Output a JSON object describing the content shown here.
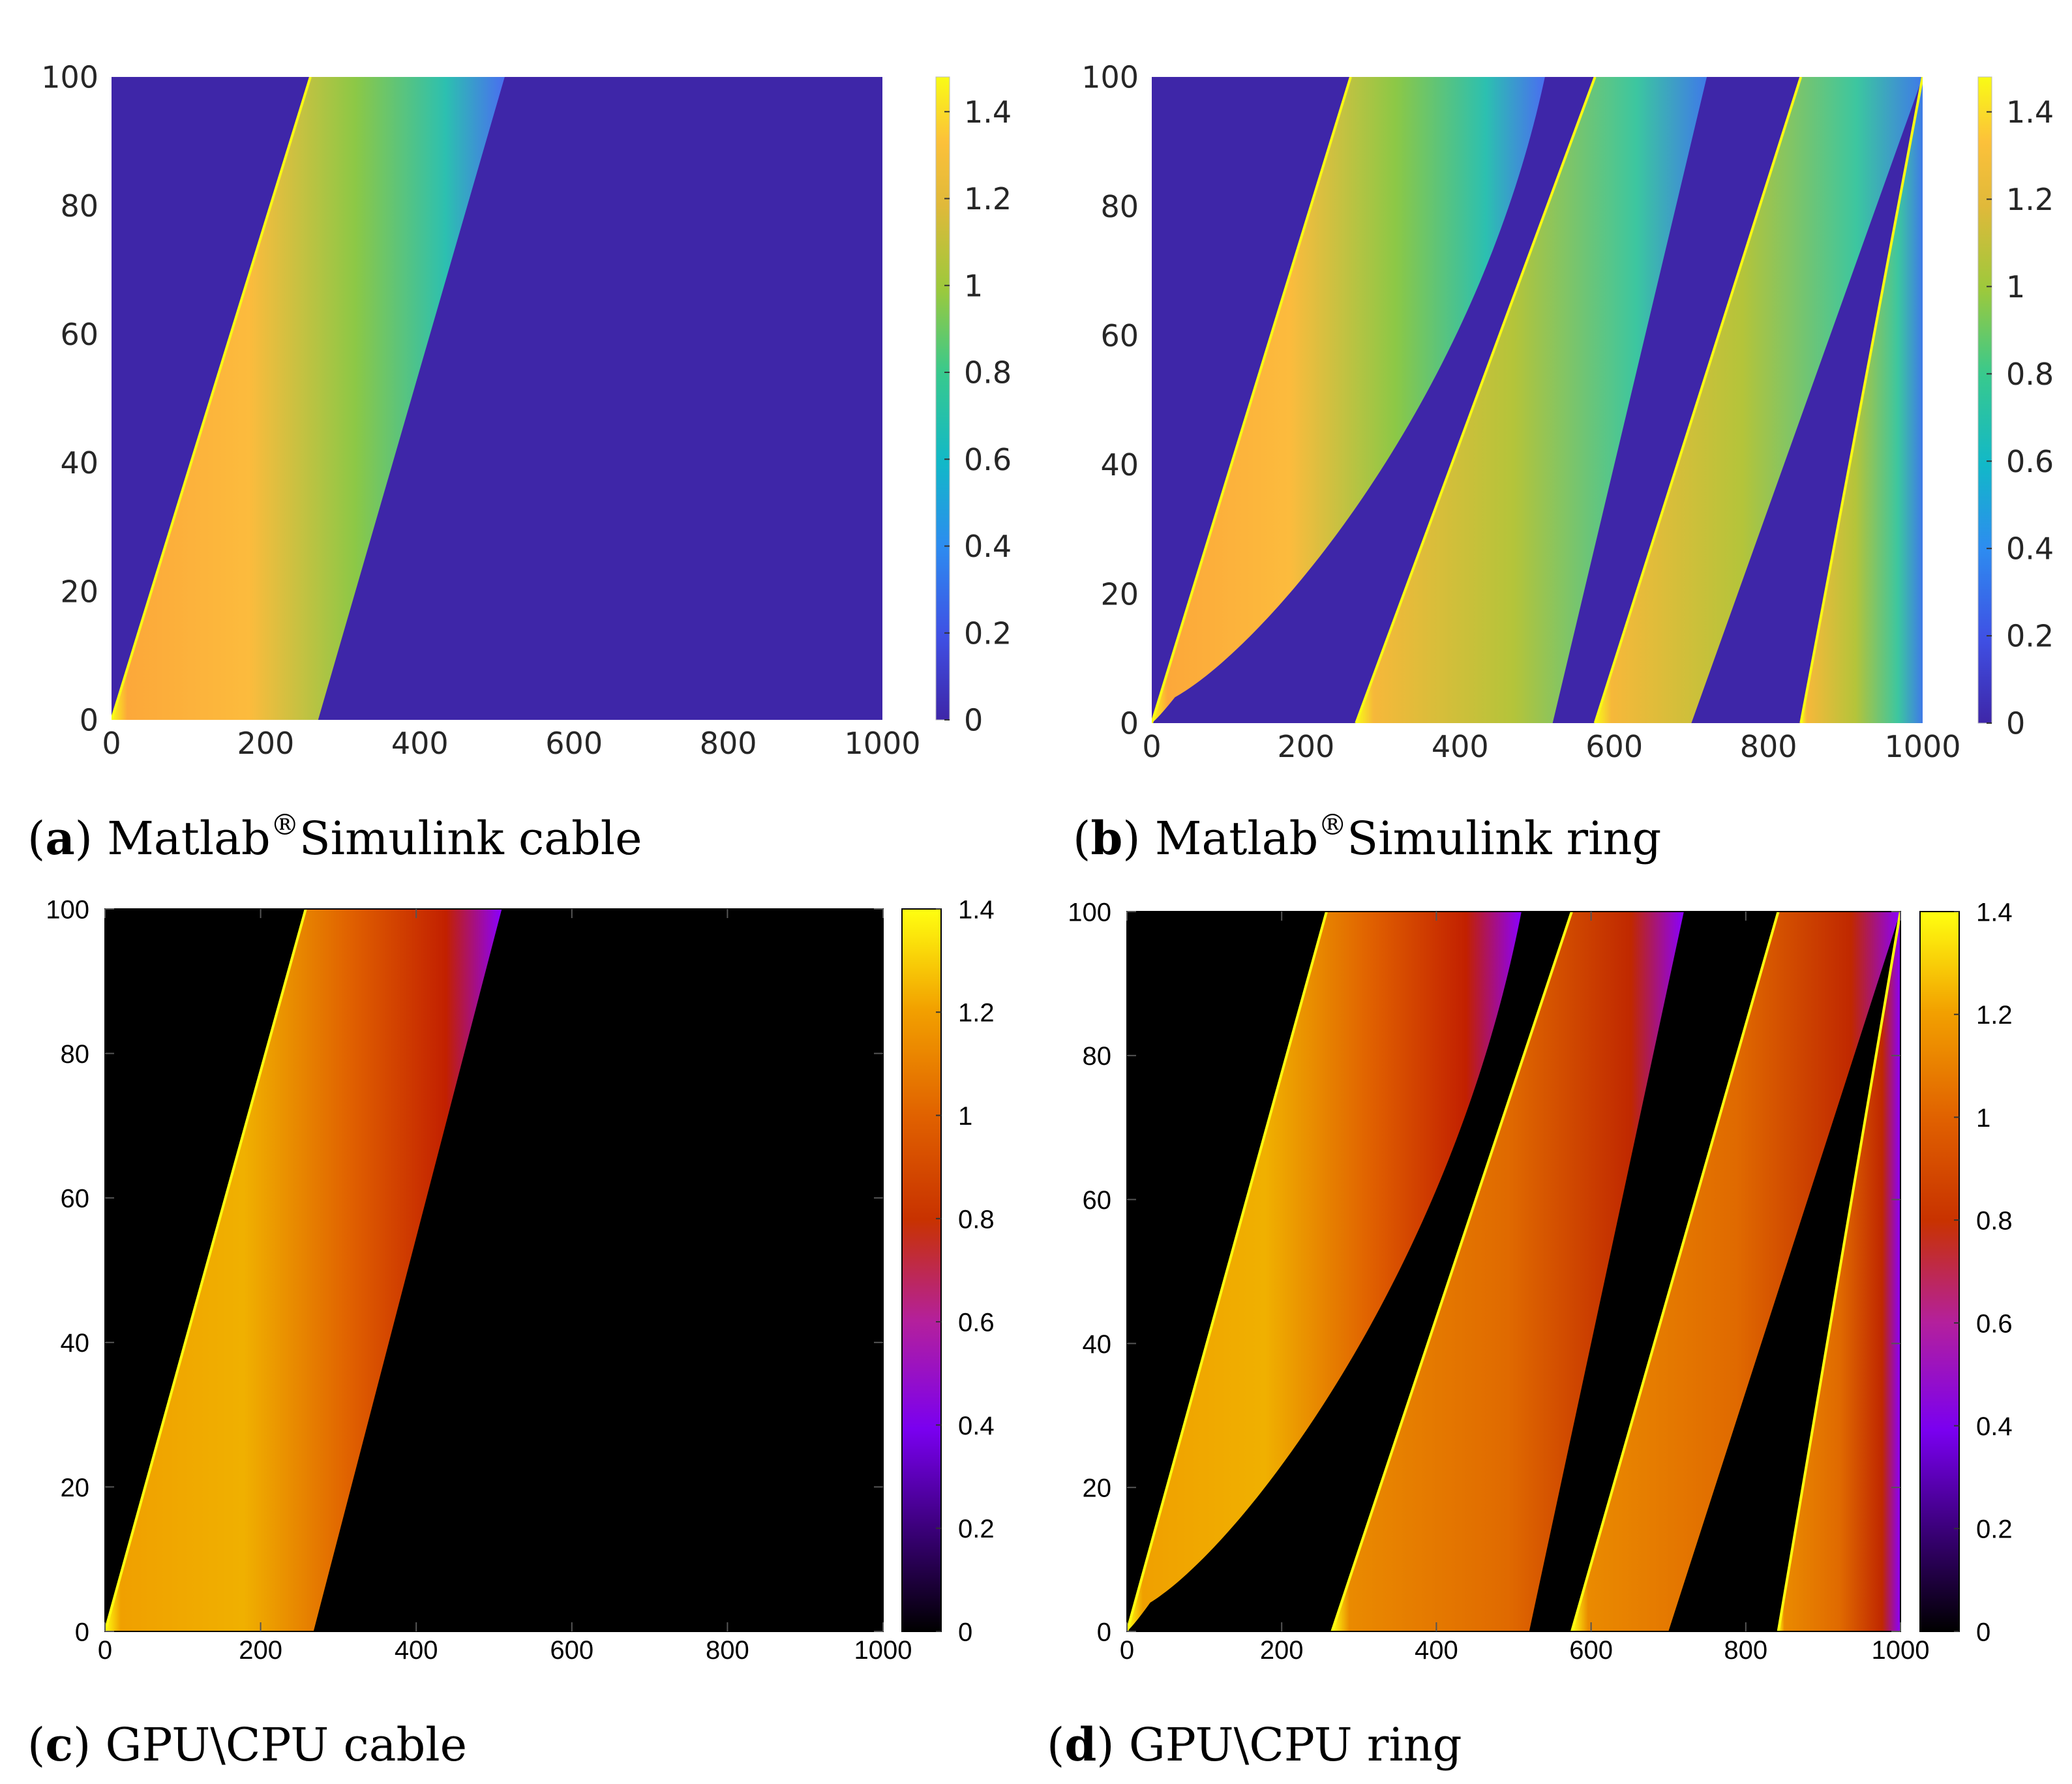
{
  "figure": {
    "panels": [
      {
        "id": "a",
        "label": "a",
        "caption": "Matlab®Simulink cable",
        "caption_pre": "Matlab",
        "caption_sup": "®",
        "caption_post": "Simulink cable",
        "colormap": "parula"
      },
      {
        "id": "b",
        "label": "b",
        "caption": "Matlab®Simulink ring",
        "caption_pre": "Matlab",
        "caption_sup": "®",
        "caption_post": "Simulink ring",
        "colormap": "parula"
      },
      {
        "id": "c",
        "label": "c",
        "caption": "GPU\\CPU cable",
        "caption_pre": "GPU\\CPU cable",
        "caption_sup": "",
        "caption_post": "",
        "colormap": "gnuplot"
      },
      {
        "id": "d",
        "label": "d",
        "caption": "GPU\\CPU ring",
        "caption_pre": "GPU\\CPU ring",
        "caption_sup": "",
        "caption_post": "",
        "colormap": "gnuplot"
      }
    ]
  },
  "chart_data": [
    {
      "type": "heatmap",
      "panel": "a",
      "title": "(a) Matlab®Simulink cable",
      "xlabel": "",
      "ylabel": "",
      "xlim": [
        0,
        1000
      ],
      "ylim": [
        0,
        100
      ],
      "xticks": [
        0,
        200,
        400,
        600,
        800,
        1000
      ],
      "yticks": [
        0,
        20,
        40,
        60,
        80,
        100
      ],
      "colorbar": {
        "range": [
          0,
          1.48
        ],
        "ticks": [
          0,
          0.2,
          0.4,
          0.6,
          0.8,
          1,
          1.2,
          1.4
        ],
        "colormap": "parula"
      },
      "background_value": 0.05,
      "bands": [
        {
          "name": "cable pulse",
          "front_x_at_y0": 0,
          "front_x_at_y100": 258,
          "back_x_at_y0": 268,
          "back_x_at_y100": 510,
          "peak_value": 1.3
        }
      ]
    },
    {
      "type": "heatmap",
      "panel": "b",
      "title": "(b) Matlab®Simulink ring",
      "xlabel": "",
      "ylabel": "",
      "xlim": [
        0,
        1000
      ],
      "ylim": [
        0,
        100
      ],
      "xticks": [
        0,
        200,
        400,
        600,
        800,
        1000
      ],
      "yticks": [
        0,
        20,
        40,
        60,
        80,
        100
      ],
      "colorbar": {
        "range": [
          0,
          1.48
        ],
        "ticks": [
          0,
          0.2,
          0.4,
          0.6,
          0.8,
          1,
          1.2,
          1.4
        ],
        "colormap": "parula"
      },
      "background_value": 0.05,
      "bands": [
        {
          "name": "first pulse",
          "front_x_at_y0": 0,
          "front_x_at_y100": 258,
          "back_x_at_y0": 30,
          "back_x_at_y100": 510,
          "peak_value": 1.3
        },
        {
          "name": "second pulse",
          "front_x_at_y0": 265,
          "front_x_at_y100": 575,
          "back_x_at_y0": 520,
          "back_x_at_y100": 720,
          "peak_value": 1.2
        },
        {
          "name": "third pulse",
          "front_x_at_y0": 575,
          "front_x_at_y100": 842,
          "back_x_at_y0": 700,
          "back_x_at_y100": 1000,
          "peak_value": 1.3
        },
        {
          "name": "fourth pulse",
          "front_x_at_y0": 842,
          "front_x_at_y100": 1000,
          "back_x_at_y0": 1000,
          "back_x_at_y100": 1000,
          "peak_value": 1.2
        }
      ]
    },
    {
      "type": "heatmap",
      "panel": "c",
      "title": "(c) GPU\\CPU cable",
      "xlabel": "",
      "ylabel": "",
      "xlim": [
        0,
        1000
      ],
      "ylim": [
        0,
        100
      ],
      "xticks": [
        0,
        200,
        400,
        600,
        800,
        1000
      ],
      "yticks": [
        0,
        20,
        40,
        60,
        80,
        100
      ],
      "colorbar": {
        "range": [
          0,
          1.4
        ],
        "ticks": [
          0,
          0.2,
          0.4,
          0.6,
          0.8,
          1,
          1.2,
          1.4
        ],
        "colormap": "gnuplot"
      },
      "background_value": 0,
      "bands": [
        {
          "name": "cable pulse",
          "front_x_at_y0": 0,
          "front_x_at_y100": 258,
          "back_x_at_y0": 268,
          "back_x_at_y100": 510,
          "peak_value": 1.3
        }
      ]
    },
    {
      "type": "heatmap",
      "panel": "d",
      "title": "(d) GPU\\CPU ring",
      "xlabel": "",
      "ylabel": "",
      "xlim": [
        0,
        1000
      ],
      "ylim": [
        0,
        100
      ],
      "xticks": [
        0,
        200,
        400,
        600,
        800,
        1000
      ],
      "yticks": [
        0,
        20,
        40,
        60,
        80,
        100
      ],
      "colorbar": {
        "range": [
          0,
          1.4
        ],
        "ticks": [
          0,
          0.2,
          0.4,
          0.6,
          0.8,
          1,
          1.2,
          1.4
        ],
        "colormap": "gnuplot"
      },
      "background_value": 0,
      "bands": [
        {
          "name": "first pulse",
          "front_x_at_y0": 0,
          "front_x_at_y100": 258,
          "back_x_at_y0": 30,
          "back_x_at_y100": 510,
          "peak_value": 1.3
        },
        {
          "name": "second pulse",
          "front_x_at_y0": 265,
          "front_x_at_y100": 575,
          "back_x_at_y0": 520,
          "back_x_at_y100": 720,
          "peak_value": 1.2
        },
        {
          "name": "third pulse",
          "front_x_at_y0": 575,
          "front_x_at_y100": 842,
          "back_x_at_y0": 700,
          "back_x_at_y100": 1000,
          "peak_value": 1.3
        },
        {
          "name": "fourth pulse",
          "front_x_at_y0": 842,
          "front_x_at_y100": 1000,
          "back_x_at_y0": 1000,
          "back_x_at_y100": 1000,
          "peak_value": 1.2
        }
      ]
    }
  ]
}
